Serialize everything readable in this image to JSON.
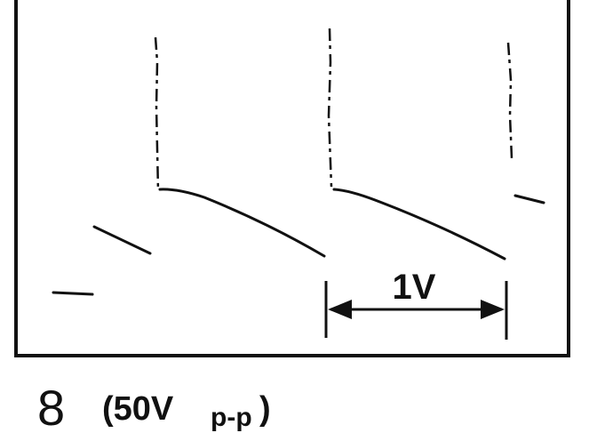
{
  "annotation": "1V",
  "caption": {
    "number": "8",
    "value": "(50V",
    "subscript": "p-p",
    "close": ")"
  }
}
